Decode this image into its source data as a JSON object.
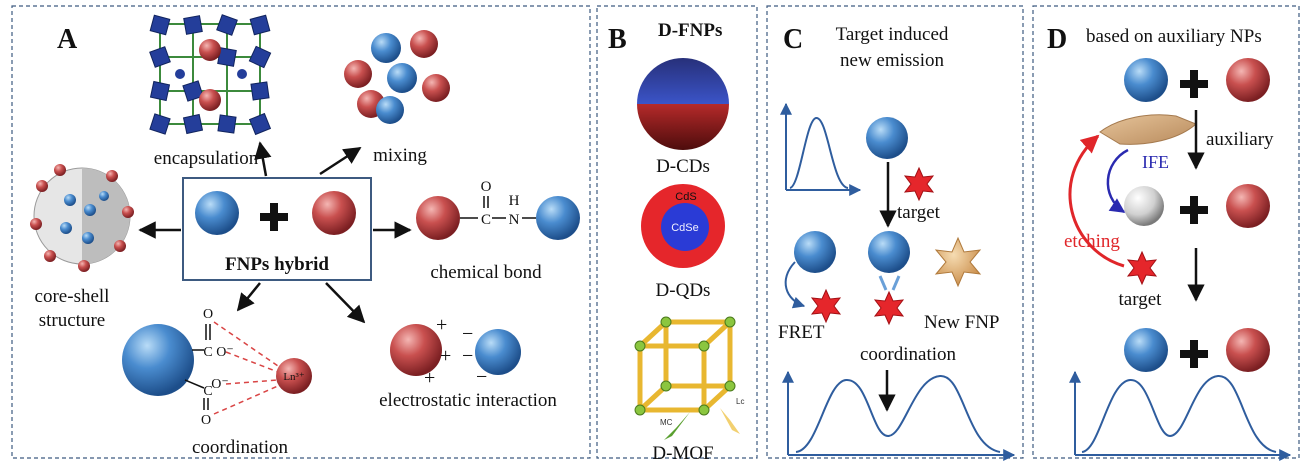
{
  "panels": {
    "a": {
      "letter": "A",
      "center": "FNPs hybrid",
      "encapsulation": "encapsulation",
      "mixing": "mixing",
      "core_shell_1": "core-shell",
      "core_shell_2": "structure",
      "chemical_bond": "chemical bond",
      "coordination": "coordination",
      "electrostatic": "electrostatic interaction",
      "ln": "Ln³⁺",
      "c": "C",
      "o": "O",
      "o_minus": "O⁻",
      "n": "N",
      "h": "H",
      "plus": "+",
      "minus": "−"
    },
    "b": {
      "letter": "B",
      "title": "D-FNPs",
      "cds": "D-CDs",
      "qds": "D-QDs",
      "mof": "D-MOF",
      "qd_shell": "CdS",
      "qd_core": "CdSe",
      "mc": "MC",
      "lc": "Lc"
    },
    "c": {
      "letter": "C",
      "title_1": "Target induced",
      "title_2": "new emission",
      "target": "target",
      "fret": "FRET",
      "new_fnp": "New FNP",
      "coordination": "coordination"
    },
    "d": {
      "letter": "D",
      "title": "based on auxiliary NPs",
      "auxiliary": "auxiliary",
      "ife": "IFE",
      "etching": "etching",
      "target": "target"
    }
  },
  "colors": {
    "blue_np": "#4a8ccf",
    "red_np": "#c9504f",
    "frame": "#3d5a80",
    "curve": "#2f5d9e",
    "arrow_red": "#e0262a",
    "star": "#e5262b"
  }
}
